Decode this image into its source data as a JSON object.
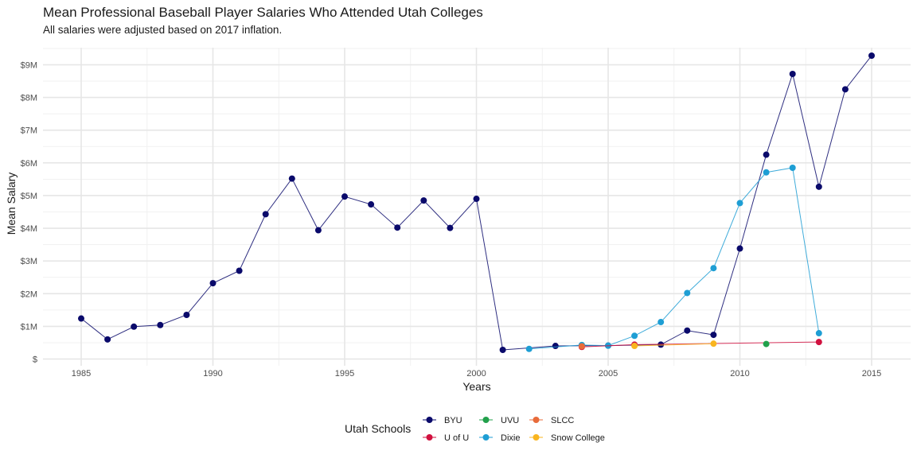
{
  "chart_data": {
    "type": "line",
    "title": "Mean Professional Baseball Player Salaries Who Attended Utah Colleges",
    "subtitle": "All salaries were adjusted based on 2017 inflation.",
    "xlabel": "Years",
    "ylabel": "Mean Salary",
    "xlim": [
      1984.4,
      2015.6
    ],
    "ylim": [
      0,
      9.7
    ],
    "x_ticks": [
      1985,
      1990,
      1995,
      2000,
      2005,
      2010,
      2015
    ],
    "y_ticks": [
      {
        "value": 0,
        "label": "$"
      },
      {
        "value": 1,
        "label": "$1M"
      },
      {
        "value": 2,
        "label": "$2M"
      },
      {
        "value": 3,
        "label": "$3M"
      },
      {
        "value": 4,
        "label": "$4M"
      },
      {
        "value": 5,
        "label": "$5M"
      },
      {
        "value": 6,
        "label": "$6M"
      },
      {
        "value": 7,
        "label": "$7M"
      },
      {
        "value": 8,
        "label": "$8M"
      },
      {
        "value": 9,
        "label": "$9M"
      }
    ],
    "y_unit": "millions of USD",
    "grid": true,
    "legend": {
      "title": "Utah Schools",
      "placement": "bottom",
      "columns": [
        [
          "BYU",
          "U of U"
        ],
        [
          "UVU",
          "Dixie"
        ],
        [
          "SLCC",
          "Snow College"
        ]
      ]
    },
    "series": [
      {
        "name": "BYU",
        "color": "#0a0a6b",
        "points": [
          [
            1985,
            1.24
          ],
          [
            1986,
            0.6
          ],
          [
            1987,
            0.99
          ],
          [
            1988,
            1.04
          ],
          [
            1989,
            1.35
          ],
          [
            1990,
            2.32
          ],
          [
            1991,
            2.7
          ],
          [
            1992,
            4.43
          ],
          [
            1993,
            5.52
          ],
          [
            1994,
            3.94
          ],
          [
            1995,
            4.97
          ],
          [
            1996,
            4.73
          ],
          [
            1997,
            4.02
          ],
          [
            1998,
            4.85
          ],
          [
            1999,
            4.01
          ],
          [
            2000,
            4.9
          ],
          [
            2001,
            0.28
          ],
          [
            2003,
            0.4
          ],
          [
            2005,
            0.41
          ],
          [
            2007,
            0.44
          ],
          [
            2008,
            0.87
          ],
          [
            2009,
            0.74
          ],
          [
            2010,
            3.38
          ],
          [
            2011,
            6.25
          ],
          [
            2012,
            8.72
          ],
          [
            2013,
            5.27
          ],
          [
            2014,
            8.25
          ],
          [
            2015,
            9.28
          ]
        ]
      },
      {
        "name": "Dixie",
        "color": "#1e9ed4",
        "points": [
          [
            2002,
            0.31
          ],
          [
            2004,
            0.43
          ],
          [
            2005,
            0.41
          ],
          [
            2006,
            0.71
          ],
          [
            2007,
            1.13
          ],
          [
            2008,
            2.02
          ],
          [
            2009,
            2.78
          ],
          [
            2010,
            4.77
          ],
          [
            2011,
            5.71
          ],
          [
            2012,
            5.85
          ],
          [
            2013,
            0.79
          ]
        ]
      },
      {
        "name": "U of U",
        "color": "#d1113f",
        "points": [
          [
            2004,
            0.37
          ],
          [
            2006,
            0.44
          ],
          [
            2013,
            0.52
          ]
        ]
      },
      {
        "name": "UVU",
        "color": "#22a04b",
        "points": [
          [
            2011,
            0.46
          ]
        ]
      },
      {
        "name": "SLCC",
        "color": "#e86b3a",
        "points": [
          [
            2004,
            0.39
          ]
        ]
      },
      {
        "name": "Snow College",
        "color": "#f9b51f",
        "points": [
          [
            2006,
            0.4
          ],
          [
            2009,
            0.47
          ]
        ]
      }
    ]
  }
}
